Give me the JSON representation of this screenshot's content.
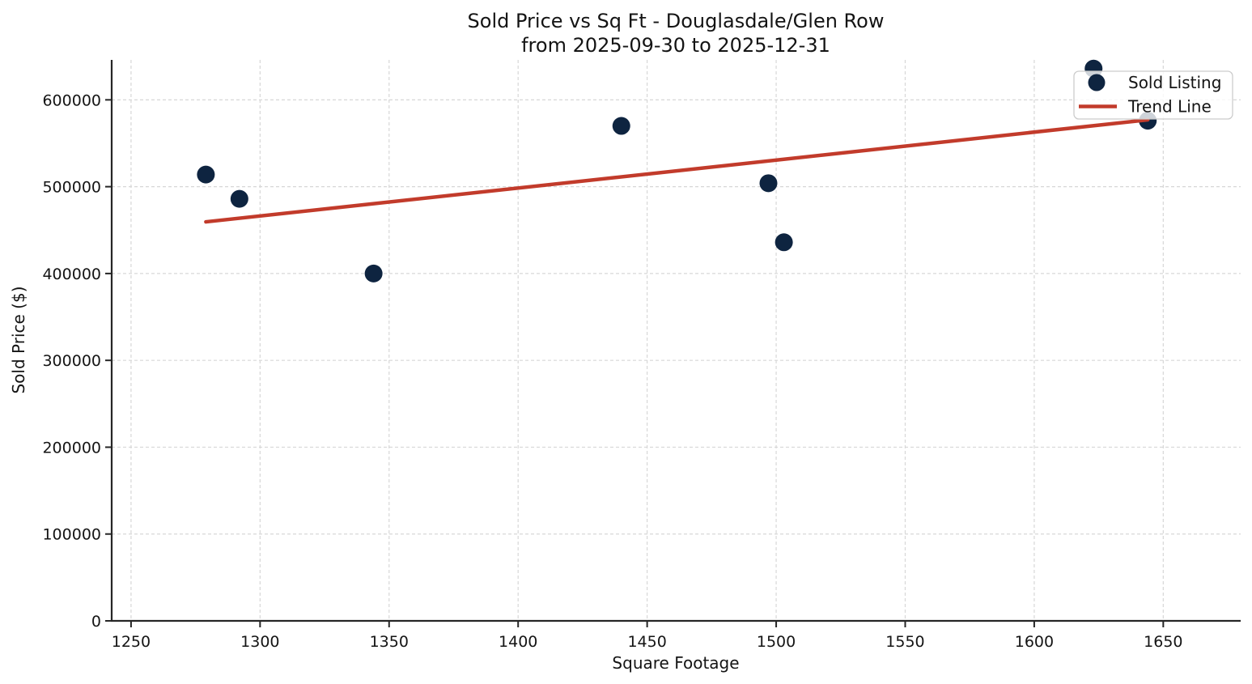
{
  "figure": {
    "title_line1": "Sold Price vs Sq Ft - Douglasdale/Glen Row",
    "title_line2": "from 2025-09-30 to 2025-12-31",
    "xlabel": "Square Footage",
    "ylabel": "Sold Price ($)"
  },
  "legend": {
    "position": "upper right",
    "items": [
      {
        "label": "Sold Listing",
        "marker": "dot"
      },
      {
        "label": "Trend Line",
        "marker": "line"
      }
    ]
  },
  "colors": {
    "point": "#0e2440",
    "trend": "#c23b2b",
    "spine": "#262626",
    "grid": "#d7d7d7",
    "text": "#141414",
    "legend_border": "#cccccc",
    "legend_fill": "rgba(255,255,255,0.8)"
  },
  "chart_data": {
    "type": "scatter",
    "title": "Sold Price vs Sq Ft - Douglasdale/Glen Row from 2025-09-30 to 2025-12-31",
    "xlabel": "Square Footage",
    "ylabel": "Sold Price ($)",
    "xlim": [
      1242.5,
      1680
    ],
    "ylim": [
      0,
      646000
    ],
    "x_ticks": [
      1250,
      1300,
      1350,
      1400,
      1450,
      1500,
      1550,
      1600,
      1650
    ],
    "y_ticks": [
      0,
      100000,
      200000,
      300000,
      400000,
      500000,
      600000
    ],
    "grid": true,
    "legend_position": "upper right",
    "series": [
      {
        "name": "Sold Listing",
        "type": "scatter",
        "points": [
          [
            1279,
            514000
          ],
          [
            1292,
            486000
          ],
          [
            1344,
            400000
          ],
          [
            1440,
            570000
          ],
          [
            1497,
            504000
          ],
          [
            1503,
            436000
          ],
          [
            1623,
            636000
          ],
          [
            1644,
            576000
          ]
        ]
      },
      {
        "name": "Trend Line",
        "type": "line",
        "points": [
          [
            1279,
            459500
          ],
          [
            1644,
            577000
          ]
        ]
      }
    ]
  }
}
